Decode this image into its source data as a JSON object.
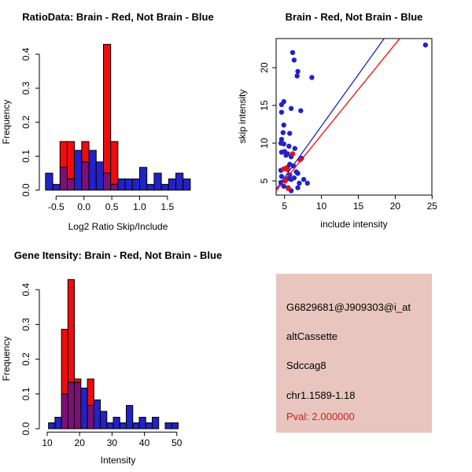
{
  "colors": {
    "red": "#ee0c0c",
    "blue": "#2222c8",
    "purple": "#7c1076",
    "axis": "#000000",
    "info_bg": "#e9c5bf",
    "pval_red": "#cc2020"
  },
  "chart_data": [
    {
      "id": "ratio_hist",
      "type": "histogram",
      "title": "RatioData: Brain - Red, Not Brain - Blue",
      "xlabel": "Log2 Ratio Skip/Include",
      "ylabel": "Frequency",
      "x_ticks": [
        "-0.5",
        "0.0",
        "0.5",
        "1.0",
        "1.5"
      ],
      "x_tick_values": [
        -0.5,
        0,
        0.5,
        1,
        1.5
      ],
      "y_ticks": [
        "0.0",
        "0.1",
        "0.2",
        "0.3",
        "0.4"
      ],
      "y_tick_values": [
        0,
        0.1,
        0.2,
        0.3,
        0.4
      ],
      "xlim": [
        -0.75,
        1.95
      ],
      "ylim": [
        0,
        0.43
      ],
      "grid": false,
      "bins": {
        "start": -0.69,
        "width": 0.13
      },
      "series": [
        {
          "name": "Not Brain",
          "color_key": "blue",
          "values": [
            0.05,
            0.017,
            0.067,
            0.033,
            0.117,
            0.083,
            0.117,
            0.083,
            0.05,
            0.017,
            0.033,
            0.033,
            0.033,
            0.067,
            0.017,
            0.05,
            0.017,
            0.033,
            0.05,
            0.033
          ]
        },
        {
          "name": "Brain",
          "color_key": "red",
          "values": [
            0,
            0,
            0.143,
            0.143,
            0,
            0.143,
            0,
            0,
            0.429,
            0.143,
            0,
            0,
            0,
            0,
            0,
            0,
            0,
            0,
            0,
            0
          ]
        }
      ],
      "overlap_color_key": "purple"
    },
    {
      "id": "intensity_scatter",
      "type": "scatter",
      "title": "Brain - Red, Not Brain - Blue",
      "xlabel": "include intensity",
      "ylabel": "skip intensity",
      "x_ticks": [
        "5",
        "10",
        "15",
        "20",
        "25"
      ],
      "x_tick_values": [
        5,
        10,
        15,
        20,
        25
      ],
      "y_ticks": [
        "5",
        "10",
        "15",
        "20"
      ],
      "y_tick_values": [
        5,
        10,
        15,
        20
      ],
      "xlim": [
        3.9,
        24.9
      ],
      "ylim": [
        3.1,
        23.9
      ],
      "grid": false,
      "points": {
        "blue": [
          [
            24.1,
            23
          ],
          [
            6.1,
            22
          ],
          [
            6.3,
            21
          ],
          [
            6.8,
            19.5
          ],
          [
            6.7,
            18.9
          ],
          [
            8.7,
            18.7
          ],
          [
            4.9,
            15.5
          ],
          [
            4.6,
            15.1
          ],
          [
            5.9,
            14.6
          ],
          [
            7.2,
            14.3
          ],
          [
            4.6,
            14.1
          ],
          [
            4.9,
            12.4
          ],
          [
            4.8,
            11.4
          ],
          [
            5.7,
            11.3
          ],
          [
            4.6,
            10.5
          ],
          [
            4.5,
            10
          ],
          [
            4.9,
            9.9
          ],
          [
            5.6,
            9.6
          ],
          [
            6.4,
            9.3
          ],
          [
            5,
            8.9
          ],
          [
            4.6,
            8.8
          ],
          [
            5.4,
            8.6
          ],
          [
            5.2,
            8.4
          ],
          [
            5.9,
            8.2
          ],
          [
            7.3,
            8
          ],
          [
            5.7,
            7.2
          ],
          [
            6.2,
            7
          ],
          [
            5.4,
            6.8
          ],
          [
            4.5,
            6.4
          ],
          [
            6.6,
            6.2
          ],
          [
            6.8,
            6
          ],
          [
            5.7,
            5.8
          ],
          [
            4.6,
            5.6
          ],
          [
            6.3,
            5.4
          ],
          [
            5.4,
            5.3
          ],
          [
            5.9,
            5.2
          ],
          [
            7.6,
            5.2
          ],
          [
            4.5,
            4.8
          ],
          [
            7,
            4.7
          ],
          [
            8.1,
            4.7
          ],
          [
            4.9,
            4.3
          ],
          [
            5.5,
            4.1
          ],
          [
            6.8,
            4.1
          ],
          [
            5.9,
            3.7
          ]
        ],
        "red": [
          [
            6.1,
            8.6
          ],
          [
            7.1,
            7.8
          ],
          [
            4.9,
            6.6
          ],
          [
            5.2,
            6.7
          ],
          [
            5.4,
            6.5
          ],
          [
            5.1,
            5
          ],
          [
            5.5,
            4
          ]
        ]
      },
      "lines": [
        {
          "name": "not-brain-fit",
          "color_key": "blue",
          "x1": 3.86,
          "y1": 3.9,
          "x2": 18.5,
          "y2": 23.85
        },
        {
          "name": "brain-fit",
          "color_key": "red",
          "x1": 3.86,
          "y1": 3.68,
          "x2": 20.6,
          "y2": 23.85
        }
      ]
    },
    {
      "id": "gene_hist",
      "type": "histogram",
      "title": "Gene Itensity: Brain - Red, Not Brain - Blue",
      "xlabel": "Intensity",
      "ylabel": "Frequency",
      "x_ticks": [
        "10",
        "20",
        "30",
        "40",
        "50"
      ],
      "x_tick_values": [
        10,
        20,
        30,
        40,
        50
      ],
      "y_ticks": [
        "0.0",
        "0.1",
        "0.2",
        "0.3",
        "0.4"
      ],
      "y_tick_values": [
        0,
        0.1,
        0.2,
        0.3,
        0.4
      ],
      "xlim": [
        9.5,
        55
      ],
      "ylim": [
        0,
        0.43
      ],
      "grid": false,
      "bins": {
        "start": 10.4,
        "width": 2
      },
      "series": [
        {
          "name": "Not Brain",
          "color_key": "blue",
          "values": [
            0.017,
            0.033,
            0.1,
            0.133,
            0.133,
            0.117,
            0.067,
            0.083,
            0.05,
            0.017,
            0.033,
            0.017,
            0.067,
            0.017,
            0.033,
            0.017,
            0.033,
            0,
            0.017,
            0.017
          ]
        },
        {
          "name": "Brain",
          "color_key": "red",
          "values": [
            0,
            0,
            0.286,
            0.429,
            0.143,
            0,
            0.143,
            0,
            0,
            0,
            0,
            0,
            0,
            0,
            0,
            0,
            0,
            0,
            0,
            0
          ]
        }
      ],
      "overlap_color_key": "purple"
    }
  ],
  "info_panel": {
    "lines": [
      "G6829681@J909303@i_at",
      "altCassette",
      "Sdccag8",
      "chr1.1589-1.18"
    ],
    "pval": "Pval: 2.000000"
  }
}
